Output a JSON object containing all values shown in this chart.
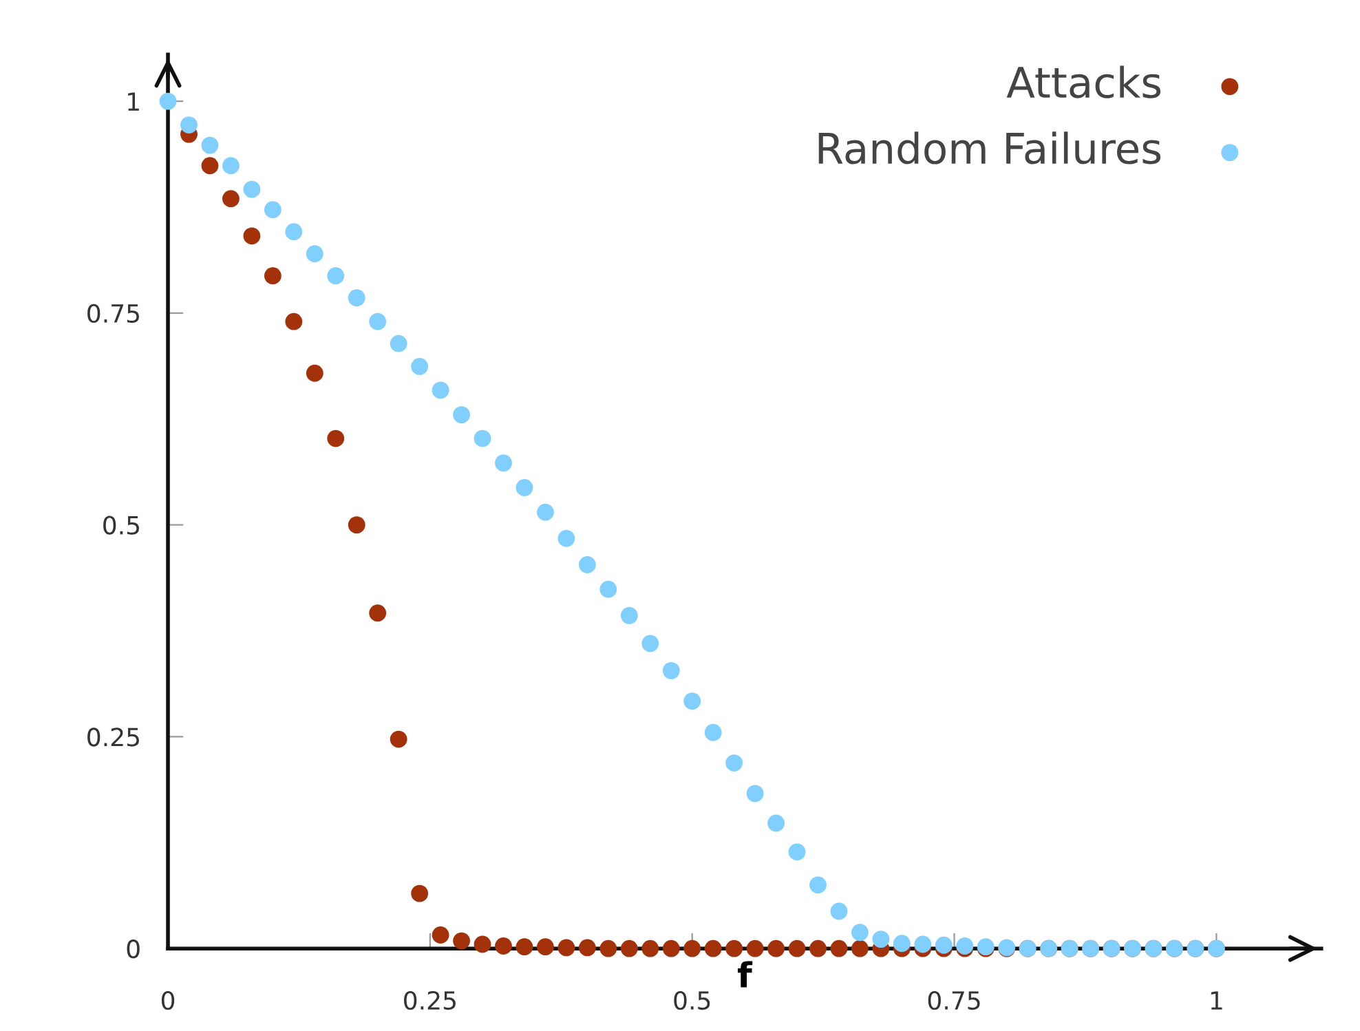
{
  "chart_data": {
    "type": "scatter",
    "xlabel": "f",
    "x": [
      0,
      0.02,
      0.04,
      0.06,
      0.08,
      0.1,
      0.12,
      0.14,
      0.16,
      0.18,
      0.2,
      0.22,
      0.24,
      0.26,
      0.28,
      0.3,
      0.32,
      0.34,
      0.36,
      0.38,
      0.4,
      0.42,
      0.44,
      0.46,
      0.48,
      0.5,
      0.52,
      0.54,
      0.56,
      0.58,
      0.6,
      0.62,
      0.64,
      0.66,
      0.68,
      0.7,
      0.72,
      0.74,
      0.76,
      0.78,
      0.8,
      0.82,
      0.84,
      0.86,
      0.88,
      0.9,
      0.92,
      0.94,
      0.96,
      0.98,
      1
    ],
    "series": [
      {
        "name": "Attacks",
        "color": "#a3320b",
        "values": [
          null,
          0.961,
          0.924,
          0.885,
          0.841,
          0.794,
          0.74,
          0.679,
          0.602,
          0.5,
          0.396,
          0.247,
          0.065,
          0.016,
          0.009,
          0.005,
          0.003,
          0.002,
          0.002,
          0.001,
          0.001,
          0,
          0,
          0,
          0,
          0,
          0,
          0,
          0,
          0,
          0,
          0,
          0,
          0,
          0,
          0,
          0,
          0,
          0,
          0,
          0,
          0,
          0,
          0,
          0,
          0,
          0,
          0,
          0,
          0,
          0
        ]
      },
      {
        "name": "Random Failures",
        "color": "#80cfff",
        "values": [
          1.0,
          0.972,
          0.948,
          0.924,
          0.896,
          0.872,
          0.846,
          0.82,
          0.794,
          0.768,
          0.74,
          0.714,
          0.687,
          0.659,
          0.63,
          0.602,
          0.573,
          0.544,
          0.515,
          0.484,
          0.453,
          0.424,
          0.393,
          0.36,
          0.328,
          0.292,
          0.255,
          0.219,
          0.183,
          0.148,
          0.114,
          0.075,
          0.044,
          0.019,
          0.011,
          0.006,
          0.005,
          0.004,
          0.003,
          0.002,
          0.001,
          0,
          0,
          0,
          0,
          0,
          0,
          0,
          0,
          0,
          0
        ]
      }
    ],
    "xlim": [
      0,
      1.1
    ],
    "ylim": [
      0,
      1.055
    ],
    "xticks": [
      0,
      0.25,
      0.5,
      0.75,
      1
    ],
    "yticks": [
      0,
      0.25,
      0.5,
      0.75,
      1
    ],
    "marker": "circle",
    "legend": "top right",
    "grid": false
  }
}
